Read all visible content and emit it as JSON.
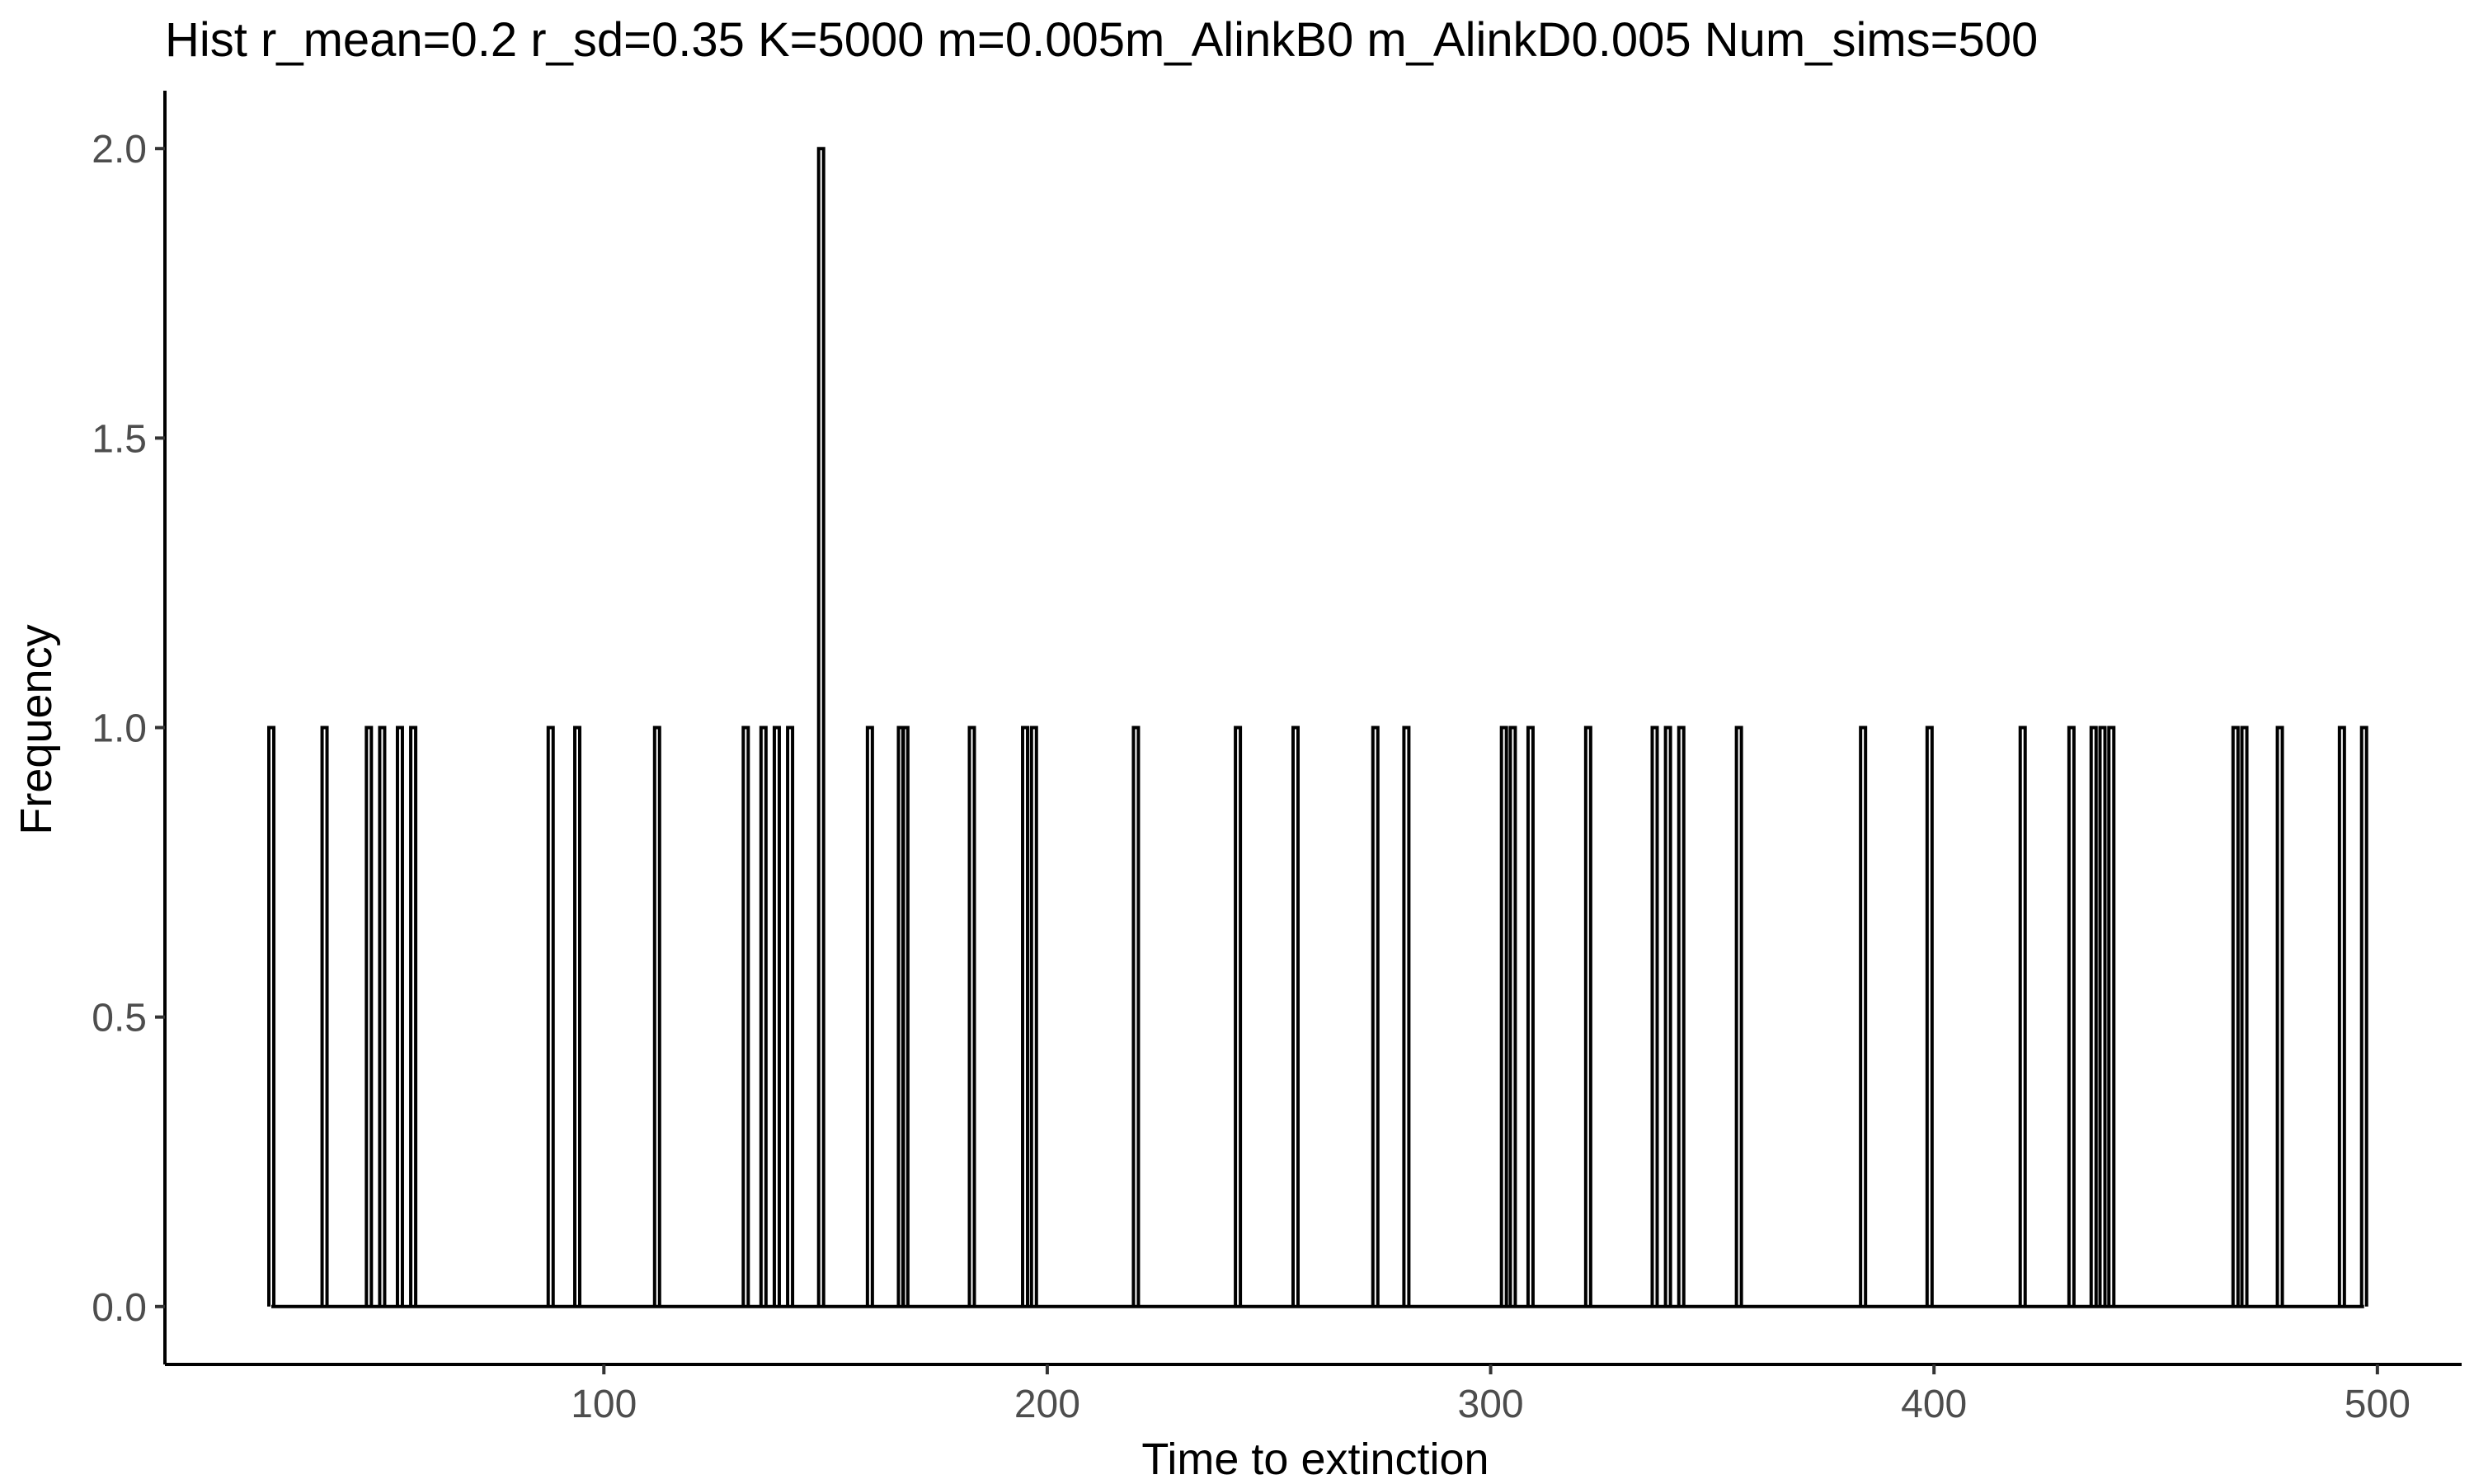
{
  "chart_data": {
    "type": "bar",
    "title": "Hist r_mean=0.2 r_sd=0.35 K=5000 m=0.005m_AlinkB0 m_AlinkD0.005 Num_sims=500",
    "xlabel": "Time to extinction",
    "ylabel": "Frequency",
    "xlim": [
      1,
      519
    ],
    "ylim": [
      -0.1,
      2.1
    ],
    "x_ticks": [
      100,
      200,
      300,
      400,
      500
    ],
    "x_tick_labels": [
      "100",
      "200",
      "300",
      "400",
      "500"
    ],
    "y_ticks": [
      0,
      0.5,
      1,
      1.5,
      2
    ],
    "y_tick_labels": [
      "0.0",
      "0.5",
      "1.0",
      "1.5",
      "2.0"
    ],
    "baseline": {
      "x_start": 25,
      "x_end": 497
    },
    "bars": [
      {
        "x": 25,
        "count": 1
      },
      {
        "x": 37,
        "count": 1
      },
      {
        "x": 47,
        "count": 1
      },
      {
        "x": 50,
        "count": 1
      },
      {
        "x": 54,
        "count": 1
      },
      {
        "x": 57,
        "count": 1
      },
      {
        "x": 88,
        "count": 1
      },
      {
        "x": 94,
        "count": 1
      },
      {
        "x": 112,
        "count": 1
      },
      {
        "x": 132,
        "count": 1
      },
      {
        "x": 136,
        "count": 1
      },
      {
        "x": 139,
        "count": 1
      },
      {
        "x": 142,
        "count": 1
      },
      {
        "x": 149,
        "count": 2
      },
      {
        "x": 160,
        "count": 1
      },
      {
        "x": 167,
        "count": 1
      },
      {
        "x": 168,
        "count": 1
      },
      {
        "x": 183,
        "count": 1
      },
      {
        "x": 195,
        "count": 1
      },
      {
        "x": 197,
        "count": 1
      },
      {
        "x": 220,
        "count": 1
      },
      {
        "x": 243,
        "count": 1
      },
      {
        "x": 256,
        "count": 1
      },
      {
        "x": 274,
        "count": 1
      },
      {
        "x": 281,
        "count": 1
      },
      {
        "x": 303,
        "count": 1
      },
      {
        "x": 305,
        "count": 1
      },
      {
        "x": 309,
        "count": 1
      },
      {
        "x": 322,
        "count": 1
      },
      {
        "x": 337,
        "count": 1
      },
      {
        "x": 340,
        "count": 1
      },
      {
        "x": 343,
        "count": 1
      },
      {
        "x": 356,
        "count": 1
      },
      {
        "x": 384,
        "count": 1
      },
      {
        "x": 399,
        "count": 1
      },
      {
        "x": 420,
        "count": 1
      },
      {
        "x": 431,
        "count": 1
      },
      {
        "x": 436,
        "count": 1
      },
      {
        "x": 438,
        "count": 1
      },
      {
        "x": 440,
        "count": 1
      },
      {
        "x": 468,
        "count": 1
      },
      {
        "x": 470,
        "count": 1
      },
      {
        "x": 478,
        "count": 1
      },
      {
        "x": 492,
        "count": 1
      },
      {
        "x": 497,
        "count": 1
      }
    ],
    "line_color": "#000000",
    "grid": false,
    "legend": "none"
  }
}
